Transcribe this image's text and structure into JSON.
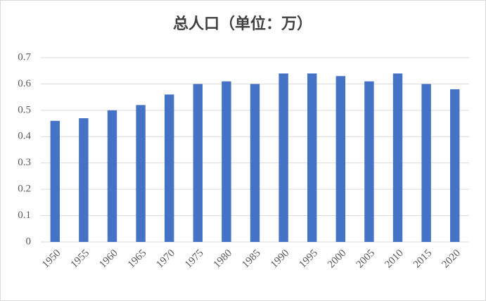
{
  "chart_data": {
    "type": "bar",
    "title": "总人口（单位：万）",
    "categories": [
      "1950",
      "1955",
      "1960",
      "1965",
      "1970",
      "1975",
      "1980",
      "1985",
      "1990",
      "1995",
      "2000",
      "2005",
      "2010",
      "2015",
      "2020"
    ],
    "values": [
      0.46,
      0.47,
      0.5,
      0.52,
      0.56,
      0.6,
      0.61,
      0.6,
      0.64,
      0.64,
      0.63,
      0.61,
      0.64,
      0.6,
      0.58
    ],
    "color": "#4472c4",
    "ylim": [
      0,
      0.7
    ],
    "yticks": [
      0,
      0.1,
      0.2,
      0.3,
      0.4,
      0.5,
      0.6,
      0.7
    ],
    "grid": true
  }
}
